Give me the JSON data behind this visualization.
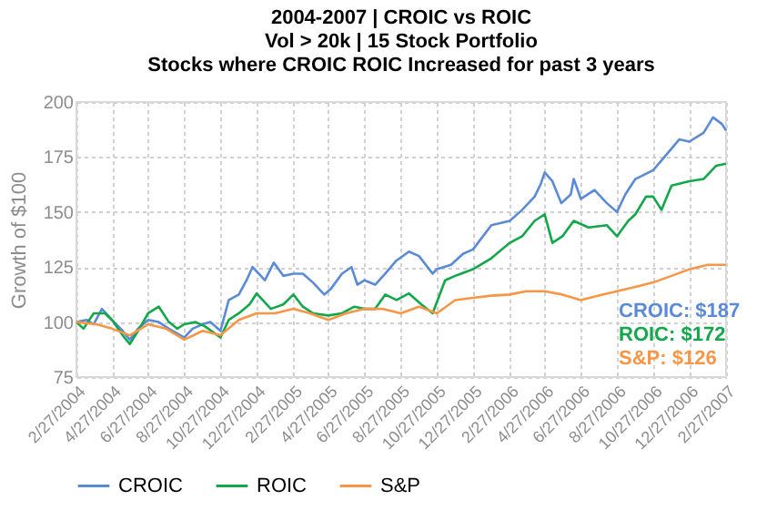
{
  "chart_data": {
    "type": "line",
    "title": "2004-2007 | CROIC vs ROIC",
    "subtitle": "Vol > 20k | 15 Stock Portfolio\nStocks where CROIC ROIC Increased for past 3 years",
    "ylabel": "Growth of $100",
    "ylim": [
      75,
      200
    ],
    "yticks": [
      75,
      100,
      125,
      150,
      175,
      200
    ],
    "xlim": [
      "2004-02-27",
      "2007-02-27"
    ],
    "xticks": [
      {
        "value": "2004-02-27",
        "label": "2/27/2004"
      },
      {
        "value": "2004-04-27",
        "label": "4/27/2004"
      },
      {
        "value": "2004-06-27",
        "label": "6/27/2004"
      },
      {
        "value": "2004-08-27",
        "label": "8/27/2004"
      },
      {
        "value": "2004-10-27",
        "label": "10/27/2004"
      },
      {
        "value": "2004-12-27",
        "label": "12/27/2004"
      },
      {
        "value": "2005-02-27",
        "label": "2/27/2005"
      },
      {
        "value": "2005-04-27",
        "label": "4/27/2005"
      },
      {
        "value": "2005-06-27",
        "label": "6/27/2005"
      },
      {
        "value": "2005-08-27",
        "label": "8/27/2005"
      },
      {
        "value": "2005-10-27",
        "label": "10/27/2005"
      },
      {
        "value": "2005-12-27",
        "label": "12/27/2005"
      },
      {
        "value": "2006-02-27",
        "label": "2/27/2006"
      },
      {
        "value": "2006-04-27",
        "label": "4/27/2006"
      },
      {
        "value": "2006-06-27",
        "label": "6/27/2006"
      },
      {
        "value": "2006-08-27",
        "label": "8/27/2006"
      },
      {
        "value": "2006-10-27",
        "label": "10/27/2006"
      },
      {
        "value": "2006-12-27",
        "label": "12/27/2006"
      },
      {
        "value": "2007-02-27",
        "label": "2/27/2007"
      }
    ],
    "grid": true,
    "legend": "bottom",
    "line_style": "solid",
    "marker": "none",
    "annotations": [
      "CROIC: $187",
      "ROIC: $172",
      "S&P: $126"
    ],
    "series": [
      {
        "name": "CROIC",
        "color": "#5b8ad6",
        "x": [
          "2004-02-27",
          "2004-03-15",
          "2004-03-27",
          "2004-04-10",
          "2004-04-27",
          "2004-05-15",
          "2004-05-27",
          "2004-06-10",
          "2004-06-27",
          "2004-07-15",
          "2004-08-01",
          "2004-08-27",
          "2004-09-10",
          "2004-09-27",
          "2004-10-10",
          "2004-10-27",
          "2004-11-10",
          "2004-11-27",
          "2004-12-10",
          "2004-12-20",
          "2005-01-10",
          "2005-01-25",
          "2005-02-10",
          "2005-02-27",
          "2005-03-15",
          "2005-04-01",
          "2005-04-20",
          "2005-05-01",
          "2005-05-20",
          "2005-06-05",
          "2005-06-15",
          "2005-06-27",
          "2005-07-15",
          "2005-08-01",
          "2005-08-20",
          "2005-09-10",
          "2005-09-27",
          "2005-10-20",
          "2005-10-27",
          "2005-11-20",
          "2005-12-10",
          "2005-12-27",
          "2006-01-27",
          "2006-02-27",
          "2006-03-20",
          "2006-04-10",
          "2006-04-20",
          "2006-04-27",
          "2006-05-10",
          "2006-05-25",
          "2006-06-10",
          "2006-06-15",
          "2006-06-27",
          "2006-07-20",
          "2006-08-10",
          "2006-08-27",
          "2006-09-10",
          "2006-09-27",
          "2006-10-27",
          "2006-11-15",
          "2006-12-10",
          "2006-12-27",
          "2007-01-20",
          "2007-02-05",
          "2007-02-20",
          "2007-02-27"
        ],
        "values": [
          100,
          101,
          99,
          106,
          101,
          96,
          92,
          97,
          101,
          100,
          97,
          93,
          97,
          99,
          100,
          96,
          110,
          112.5,
          119,
          125,
          119,
          127,
          121,
          122,
          122,
          118,
          112.5,
          115,
          122,
          125,
          117,
          119,
          117,
          122,
          128,
          132,
          130,
          122,
          124,
          126,
          131,
          133,
          144,
          146,
          151,
          157,
          162.5,
          168,
          164,
          154,
          158,
          165,
          156,
          160,
          154,
          150,
          158,
          165,
          169,
          175,
          183,
          182,
          186,
          193,
          190,
          187
        ]
      },
      {
        "name": "ROIC",
        "color": "#12a84a",
        "x": [
          "2004-02-27",
          "2004-03-10",
          "2004-03-27",
          "2004-04-15",
          "2004-04-27",
          "2004-05-15",
          "2004-05-27",
          "2004-06-10",
          "2004-06-27",
          "2004-07-15",
          "2004-08-01",
          "2004-08-15",
          "2004-08-27",
          "2004-09-15",
          "2004-10-01",
          "2004-10-27",
          "2004-11-10",
          "2004-11-27",
          "2004-12-15",
          "2004-12-27",
          "2005-01-20",
          "2005-02-10",
          "2005-02-27",
          "2005-03-15",
          "2005-04-01",
          "2005-04-27",
          "2005-05-20",
          "2005-06-10",
          "2005-06-27",
          "2005-07-15",
          "2005-08-01",
          "2005-08-20",
          "2005-09-10",
          "2005-10-01",
          "2005-10-20",
          "2005-11-10",
          "2005-11-27",
          "2005-12-27",
          "2006-01-27",
          "2006-02-27",
          "2006-03-20",
          "2006-04-10",
          "2006-04-27",
          "2006-05-10",
          "2006-05-27",
          "2006-06-15",
          "2006-07-10",
          "2006-08-10",
          "2006-08-27",
          "2006-09-15",
          "2006-09-27",
          "2006-10-15",
          "2006-10-27",
          "2006-11-10",
          "2006-11-27",
          "2006-12-27",
          "2007-01-20",
          "2007-02-10",
          "2007-02-27"
        ],
        "values": [
          100,
          97,
          104,
          104,
          101,
          94,
          90,
          96,
          104,
          107,
          100,
          97,
          99,
          100,
          98,
          93,
          101,
          104,
          108,
          113,
          106,
          108,
          112.5,
          107,
          104,
          103,
          104,
          107,
          106,
          106,
          112.5,
          110,
          113,
          108,
          104,
          119,
          121,
          124,
          129,
          136,
          139,
          146,
          149,
          136,
          139,
          146,
          143,
          144,
          139,
          146,
          149,
          157,
          157,
          151,
          162,
          164,
          165,
          171,
          172
        ]
      },
      {
        "name": "S&P",
        "color": "#f79646",
        "x": [
          "2004-02-27",
          "2004-04-01",
          "2004-04-27",
          "2004-05-27",
          "2004-06-27",
          "2004-07-27",
          "2004-08-27",
          "2004-09-27",
          "2004-10-27",
          "2004-11-27",
          "2004-12-27",
          "2005-01-27",
          "2005-02-27",
          "2005-03-27",
          "2005-04-27",
          "2005-05-27",
          "2005-06-27",
          "2005-07-27",
          "2005-08-27",
          "2005-09-27",
          "2005-10-27",
          "2005-11-27",
          "2005-12-27",
          "2006-01-27",
          "2006-02-27",
          "2006-03-27",
          "2006-04-27",
          "2006-05-27",
          "2006-06-27",
          "2006-07-27",
          "2006-08-27",
          "2006-09-27",
          "2006-10-27",
          "2006-11-27",
          "2006-12-27",
          "2007-01-27",
          "2007-02-27"
        ],
        "values": [
          100,
          99,
          97,
          94,
          99,
          97,
          92,
          96,
          94,
          101,
          104,
          104,
          106,
          104,
          101,
          104,
          106,
          106,
          104,
          107,
          104,
          110,
          111,
          112,
          112.5,
          114,
          114,
          112.5,
          110,
          112,
          114,
          116,
          118,
          121,
          124,
          126,
          126
        ]
      }
    ]
  }
}
